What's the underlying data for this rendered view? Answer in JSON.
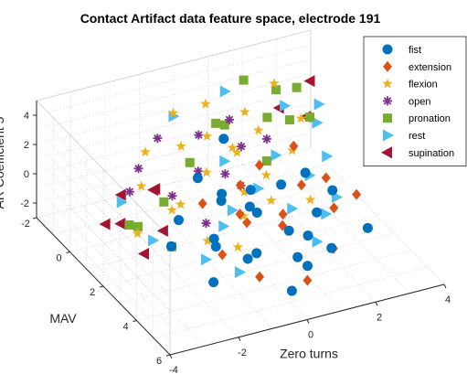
{
  "chart_data": {
    "type": "scatter",
    "projection": "3d",
    "title": "Contact Artifact data feature space, electrode 191",
    "xlabel": "Zero turns",
    "ylabel": "MAV",
    "zlabel": "AR Coefficient 5",
    "xlim": [
      -4,
      4
    ],
    "ylim": [
      -2,
      6
    ],
    "zlim": [
      -3,
      5
    ],
    "xticks": [
      "-4",
      "-2",
      "0",
      "2",
      "4"
    ],
    "yticks": [
      "-2",
      "0",
      "2",
      "4",
      "6"
    ],
    "zticks": [
      "-2",
      "0",
      "2",
      "4"
    ],
    "grid": true,
    "legend_position": "top-right",
    "series": [
      {
        "name": "fist",
        "marker": "circle",
        "color": "#0072BD",
        "points": [
          [
            -1.0,
            4.5,
            0.0
          ],
          [
            -0.5,
            4.0,
            -0.5
          ],
          [
            0.5,
            5.0,
            -0.8
          ],
          [
            -1.5,
            3.5,
            0.5
          ],
          [
            0.0,
            3.0,
            0.8
          ],
          [
            1.0,
            4.0,
            -0.2
          ],
          [
            -0.8,
            2.5,
            1.5
          ],
          [
            0.3,
            2.0,
            1.0
          ],
          [
            -2.0,
            4.5,
            -1.0
          ],
          [
            1.5,
            3.5,
            0.5
          ],
          [
            -0.2,
            5.5,
            -1.5
          ],
          [
            -1.2,
            3.0,
            -0.8
          ],
          [
            0.8,
            2.8,
            2.0
          ],
          [
            2.2,
            3.0,
            1.0
          ],
          [
            -0.6,
            3.8,
            2.5
          ],
          [
            0.2,
            4.5,
            1.2
          ],
          [
            -1.8,
            2.0,
            0.2
          ],
          [
            1.2,
            5.0,
            0.0
          ],
          [
            0.6,
            4.2,
            -1.2
          ],
          [
            -0.3,
            1.5,
            0.5
          ],
          [
            2.5,
            4.5,
            0.0
          ],
          [
            -2.5,
            3.0,
            0.0
          ],
          [
            1.8,
            2.2,
            1.5
          ],
          [
            0.0,
            1.0,
            3.5
          ],
          [
            -1.0,
            1.5,
            2.0
          ]
        ]
      },
      {
        "name": "extension",
        "marker": "diamond",
        "color": "#D95319",
        "points": [
          [
            0.5,
            3.5,
            0.2
          ],
          [
            1.0,
            2.5,
            -0.5
          ],
          [
            -0.5,
            3.0,
            1.0
          ],
          [
            1.5,
            4.5,
            -0.8
          ],
          [
            0.0,
            2.0,
            1.5
          ],
          [
            -1.5,
            4.0,
            0.0
          ],
          [
            2.0,
            3.5,
            0.5
          ],
          [
            0.8,
            1.5,
            1.8
          ],
          [
            -0.8,
            4.8,
            -1.0
          ],
          [
            1.2,
            3.2,
            2.2
          ],
          [
            -0.2,
            2.8,
            0.0
          ],
          [
            2.5,
            2.0,
            0.5
          ],
          [
            0.4,
            5.2,
            -1.5
          ],
          [
            -1.2,
            2.2,
            1.2
          ],
          [
            1.8,
            1.5,
            2.5
          ],
          [
            3.0,
            2.8,
            0.0
          ]
        ]
      },
      {
        "name": "flexion",
        "marker": "star",
        "color": "#EDB120",
        "points": [
          [
            -0.5,
            1.0,
            1.5
          ],
          [
            0.5,
            0.5,
            2.0
          ],
          [
            -1.5,
            1.5,
            0.5
          ],
          [
            1.0,
            1.5,
            1.0
          ],
          [
            0.0,
            0.0,
            2.5
          ],
          [
            -1.0,
            0.5,
            3.0
          ],
          [
            1.5,
            0.0,
            2.0
          ],
          [
            -2.0,
            2.0,
            1.0
          ],
          [
            0.8,
            2.2,
            0.2
          ],
          [
            -0.3,
            2.8,
            0.5
          ],
          [
            2.0,
            1.0,
            1.5
          ],
          [
            -2.5,
            1.2,
            2.0
          ],
          [
            0.2,
            -0.5,
            4.0
          ],
          [
            -0.8,
            3.5,
            -0.5
          ],
          [
            1.2,
            -0.2,
            3.2
          ],
          [
            -1.8,
            0.0,
            2.5
          ],
          [
            2.5,
            0.5,
            2.8
          ],
          [
            0.0,
            1.8,
            3.5
          ],
          [
            -1.2,
            2.5,
            -1.0
          ],
          [
            0.6,
            1.0,
            -0.5
          ],
          [
            1.8,
            2.5,
            0.0
          ],
          [
            -3.0,
            2.0,
            0.0
          ],
          [
            -0.6,
            -0.8,
            3.5
          ],
          [
            2.2,
            -0.5,
            4.2
          ]
        ]
      },
      {
        "name": "open",
        "marker": "asterisk",
        "color": "#7E2F8E",
        "points": [
          [
            -1.5,
            1.0,
            0.5
          ],
          [
            -0.5,
            0.5,
            1.0
          ],
          [
            0.5,
            1.0,
            0.0
          ],
          [
            -2.0,
            0.0,
            1.5
          ],
          [
            1.0,
            0.0,
            1.2
          ],
          [
            -1.0,
            2.0,
            -0.5
          ],
          [
            0.0,
            -0.5,
            2.0
          ],
          [
            -2.5,
            0.5,
            0.8
          ],
          [
            1.5,
            0.5,
            2.0
          ],
          [
            -0.2,
            1.5,
            1.8
          ],
          [
            -1.2,
            -0.5,
            2.5
          ],
          [
            0.8,
            -0.3,
            2.8
          ]
        ]
      },
      {
        "name": "pronation",
        "marker": "square",
        "color": "#77AC30",
        "points": [
          [
            1.0,
            -1.0,
            1.5
          ],
          [
            2.0,
            -0.5,
            2.0
          ],
          [
            -1.5,
            0.5,
            -0.5
          ],
          [
            1.5,
            0.5,
            0.5
          ],
          [
            2.5,
            -1.0,
            3.0
          ],
          [
            -2.5,
            1.0,
            -1.0
          ],
          [
            3.0,
            0.0,
            2.0
          ],
          [
            0.5,
            -0.5,
            2.5
          ],
          [
            -2.0,
            2.0,
            -1.5
          ],
          [
            1.8,
            -1.5,
            3.5
          ],
          [
            2.8,
            -0.8,
            1.0
          ],
          [
            -0.5,
            0.0,
            1.0
          ],
          [
            3.2,
            -1.2,
            2.5
          ],
          [
            -3.0,
            1.5,
            0.0
          ]
        ]
      },
      {
        "name": "rest",
        "marker": "triangle-right",
        "color": "#4DBEEE",
        "points": [
          [
            2.0,
            0.0,
            0.0
          ],
          [
            2.5,
            1.0,
            -0.5
          ],
          [
            1.0,
            1.0,
            -0.5
          ],
          [
            -0.5,
            2.0,
            -1.0
          ],
          [
            3.0,
            1.0,
            0.5
          ],
          [
            1.5,
            2.0,
            -1.0
          ],
          [
            -1.5,
            3.0,
            -1.5
          ],
          [
            2.5,
            -0.5,
            2.5
          ],
          [
            0.0,
            1.5,
            -0.8
          ],
          [
            3.2,
            0.0,
            1.5
          ],
          [
            -2.5,
            0.0,
            -0.5
          ],
          [
            1.0,
            -1.0,
            3.8
          ],
          [
            -1.0,
            4.0,
            -1.5
          ],
          [
            2.0,
            3.0,
            -0.5
          ],
          [
            -2.8,
            2.5,
            0.0
          ],
          [
            0.5,
            0.0,
            0.5
          ],
          [
            2.8,
            2.0,
            -1.0
          ],
          [
            -0.5,
            -1.0,
            3.0
          ],
          [
            3.5,
            -0.5,
            2.0
          ],
          [
            1.5,
            3.5,
            -1.5
          ]
        ]
      },
      {
        "name": "supination",
        "marker": "triangle-left",
        "color": "#A2142F",
        "points": [
          [
            -3.0,
            1.0,
            -0.5
          ],
          [
            -2.5,
            0.0,
            0.0
          ],
          [
            -2.0,
            1.5,
            -1.0
          ],
          [
            3.5,
            -1.0,
            3.0
          ],
          [
            -3.2,
            0.5,
            -1.0
          ],
          [
            -1.8,
            0.5,
            0.5
          ],
          [
            3.0,
            -0.2,
            1.8
          ],
          [
            -2.8,
            2.0,
            -1.5
          ],
          [
            -1.5,
            0.0,
            -0.2
          ],
          [
            2.5,
            -0.8,
            2.0
          ]
        ]
      }
    ]
  }
}
